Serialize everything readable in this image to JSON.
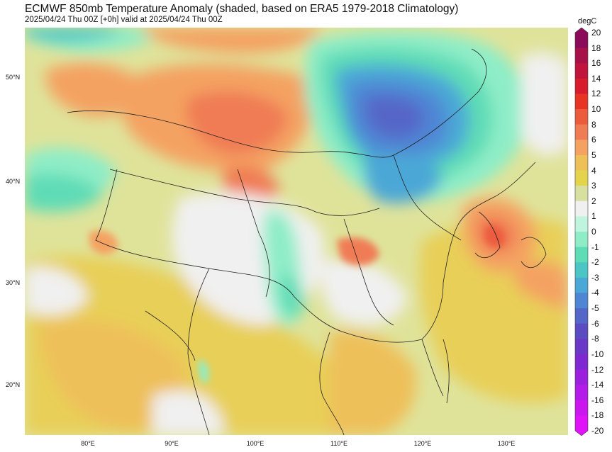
{
  "header": {
    "title": "ECMWF 850mb Temperature Anomaly (shaded, based on ERA5 1979-2018 Climatology)",
    "subtitle": "2025/04/24 Thu 00Z [+0h] valid at 2025/04/24 Thu 00Z"
  },
  "map": {
    "projection": "lat-lon",
    "region": "China and surrounding region",
    "lon_range": [
      72,
      138
    ],
    "lat_range": [
      15,
      55
    ],
    "lat_labels": [
      "50°N",
      "40°N",
      "30°N",
      "20°N"
    ],
    "lon_labels": [
      "80°E",
      "90°E",
      "100°E",
      "110°E",
      "120°E",
      "130°E"
    ]
  },
  "colorbar": {
    "unit": "degC",
    "levels": [
      "20",
      "18",
      "16",
      "14",
      "12",
      "10",
      "8",
      "6",
      "5",
      "4",
      "3",
      "2",
      "1",
      "0",
      "-1",
      "-2",
      "-3",
      "-4",
      "-5",
      "-6",
      "-8",
      "-10",
      "-12",
      "-14",
      "-16",
      "-18",
      "-20"
    ],
    "colors": [
      "#8c0a5a",
      "#a8104a",
      "#c0143c",
      "#d81c2e",
      "#e83424",
      "#ec5c3c",
      "#f07c54",
      "#f4a262",
      "#eec05a",
      "#e4d44c",
      "#d8e0a0",
      "#f0f0f0",
      "#bff5df",
      "#8eedc7",
      "#5edcb6",
      "#4cc6c4",
      "#4ba7d6",
      "#4f86d4",
      "#5466c8",
      "#5a4cc0",
      "#6a38c6",
      "#7e28d2",
      "#9a20de",
      "#b41ae8",
      "#cc16f0",
      "#e012f8"
    ]
  }
}
